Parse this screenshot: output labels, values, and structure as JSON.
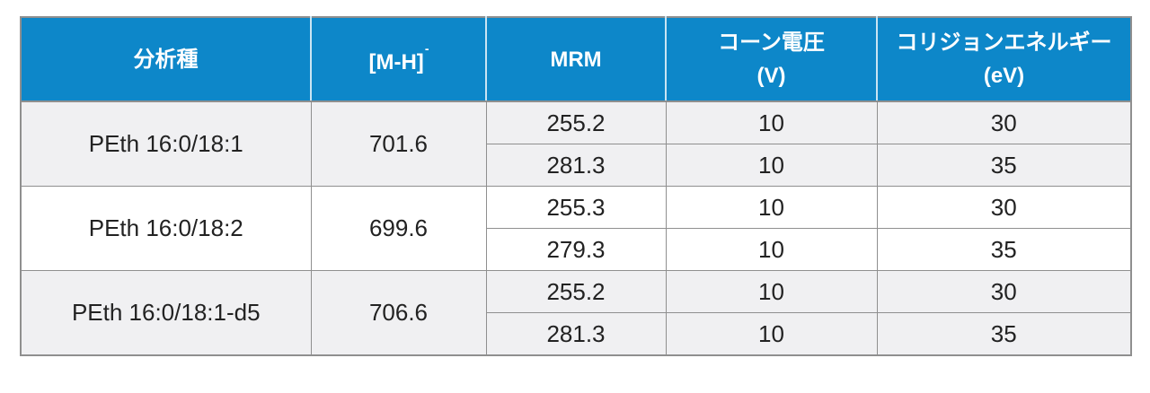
{
  "table": {
    "title_semantic": "MRM acquisition parameters",
    "columns": [
      {
        "key": "analyte",
        "label": "分析種"
      },
      {
        "key": "mh",
        "label_base": "[M-H]",
        "label_sup": "-"
      },
      {
        "key": "mrm",
        "label": "MRM"
      },
      {
        "key": "cone_voltage",
        "label_line1": "コーン電圧",
        "label_line2": "(V)"
      },
      {
        "key": "collision_energy",
        "label_line1": "コリジョンエネルギー",
        "label_line2": "(eV)"
      }
    ],
    "groups": [
      {
        "analyte": "PEth 16:0/18:1",
        "mh": "701.6",
        "rows": [
          {
            "mrm": "255.2",
            "cone": "10",
            "ce": "30"
          },
          {
            "mrm": "281.3",
            "cone": "10",
            "ce": "35"
          }
        ]
      },
      {
        "analyte": "PEth 16:0/18:2",
        "mh": "699.6",
        "rows": [
          {
            "mrm": "255.3",
            "cone": "10",
            "ce": "30"
          },
          {
            "mrm": "279.3",
            "cone": "10",
            "ce": "35"
          }
        ]
      },
      {
        "analyte": "PEth 16:0/18:1-d5",
        "mh": "706.6",
        "rows": [
          {
            "mrm": "255.2",
            "cone": "10",
            "ce": "30"
          },
          {
            "mrm": "281.3",
            "cone": "10",
            "ce": "35"
          }
        ]
      }
    ],
    "colors": {
      "header_bg": "#0d87c9",
      "header_text": "#ffffff",
      "header_divider": "#c9e4f3",
      "border": "#8f8f8f",
      "row_alt_bg": "#f0f0f2",
      "row_bg": "#ffffff",
      "body_text": "#222222"
    }
  }
}
